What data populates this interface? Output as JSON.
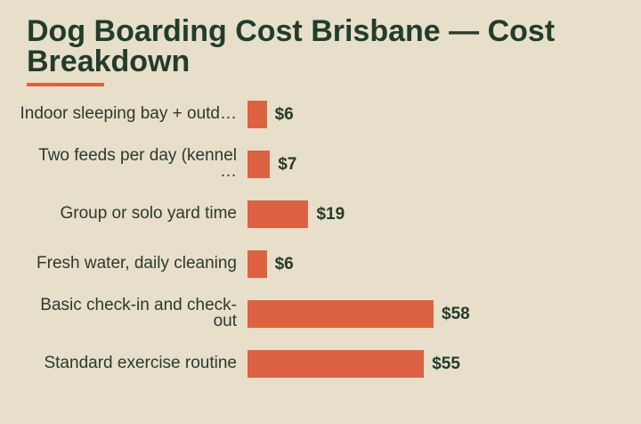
{
  "chart_data": {
    "type": "bar",
    "orientation": "horizontal",
    "title": "Dog Boarding Cost Brisbane — Cost Breakdown",
    "categories": [
      "Indoor sleeping bay + outd…",
      "Two feeds per day (kennel …",
      "Group or solo yard time",
      "Fresh water, daily cleaning",
      "Basic check-in and check-out",
      "Standard exercise routine"
    ],
    "values": [
      6,
      7,
      19,
      6,
      58,
      55
    ],
    "value_labels": [
      "$6",
      "$7",
      "$19",
      "$6",
      "$58",
      "$55"
    ],
    "color": "#dc6241"
  }
}
